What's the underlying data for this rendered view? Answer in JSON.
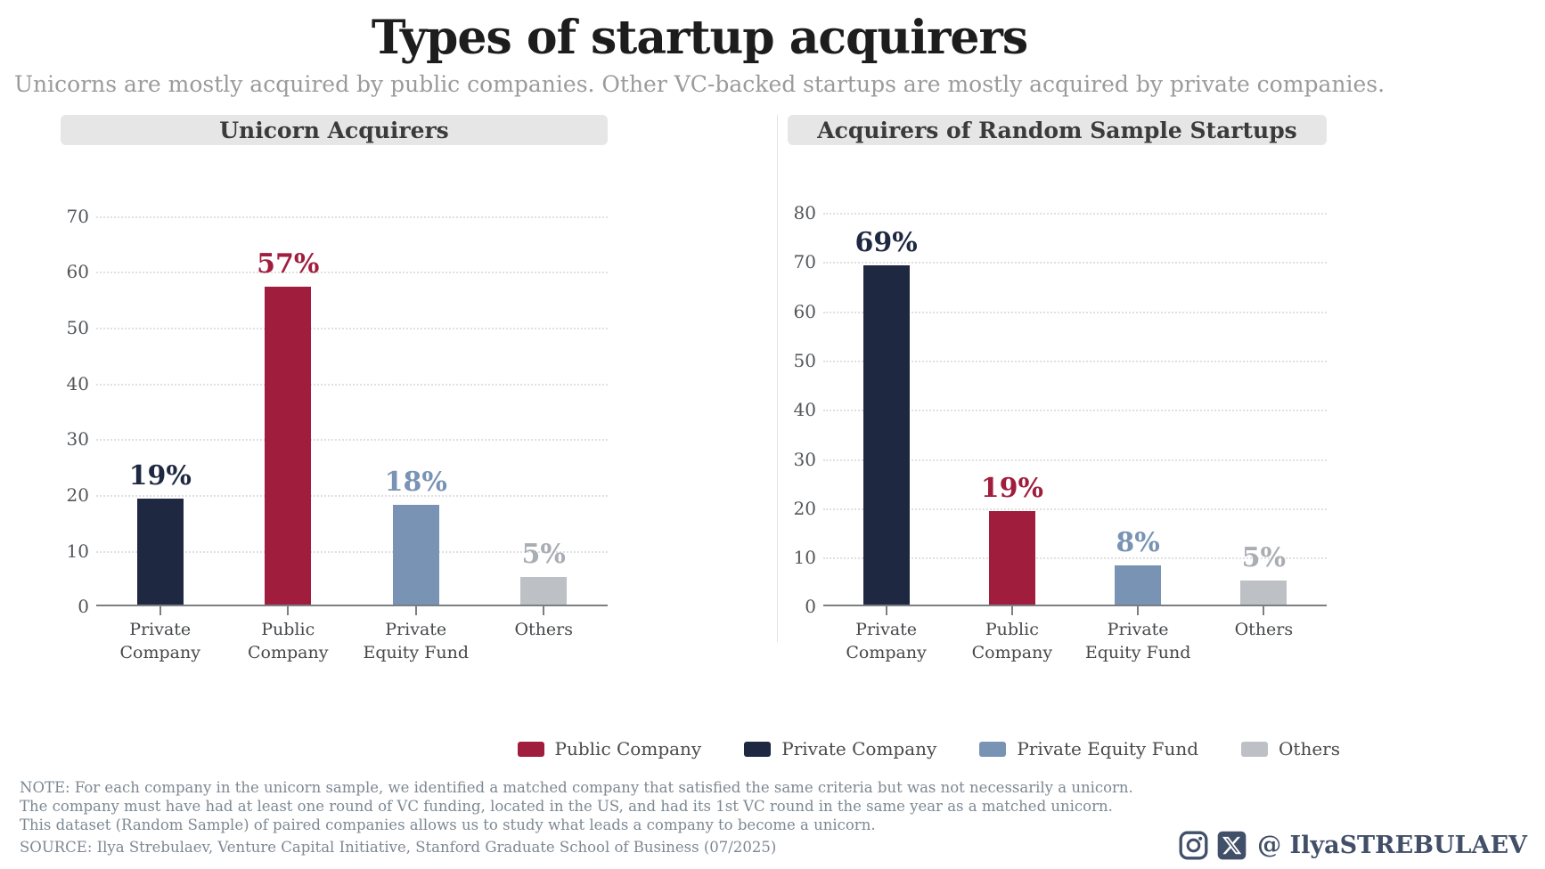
{
  "title": "Types of startup acquirers",
  "subtitle": "Unicorns are mostly acquired by public companies. Other VC-backed startups are mostly acquired by private companies.",
  "colors": {
    "public_company": "#a01d3d",
    "private_company": "#1e2941",
    "private_equity_fund": "#7893b4",
    "others": "#bdc1c5",
    "others_label": "#a9aeb4"
  },
  "chart_data": [
    {
      "type": "bar",
      "title": "Unicorn Acquirers",
      "categories": [
        "Private\nCompany",
        "Public\nCompany",
        "Private\nEquity Fund",
        "Others"
      ],
      "values": [
        19,
        57,
        18,
        5
      ],
      "value_labels": [
        "19%",
        "57%",
        "18%",
        "5%"
      ],
      "bar_colors": [
        "#1e2941",
        "#a01d3d",
        "#7893b4",
        "#bdc1c5"
      ],
      "label_colors": [
        "#1e2941",
        "#a01d3d",
        "#7893b4",
        "#a9aeb4"
      ],
      "ylabel": "",
      "xlabel": "",
      "yticks": [
        0,
        10,
        20,
        30,
        40,
        50,
        60,
        70
      ],
      "ymax": 75,
      "grid": "horizontal dotted",
      "legend_position": "none"
    },
    {
      "type": "bar",
      "title": "Acquirers of Random Sample Startups",
      "categories": [
        "Private\nCompany",
        "Public\nCompany",
        "Private\nEquity Fund",
        "Others"
      ],
      "values": [
        69,
        19,
        8,
        5
      ],
      "value_labels": [
        "69%",
        "19%",
        "8%",
        "5%"
      ],
      "bar_colors": [
        "#1e2941",
        "#a01d3d",
        "#7893b4",
        "#bdc1c5"
      ],
      "label_colors": [
        "#1e2941",
        "#a01d3d",
        "#7893b4",
        "#a9aeb4"
      ],
      "ylabel": "",
      "xlabel": "",
      "yticks": [
        0,
        10,
        20,
        30,
        40,
        50,
        60,
        70,
        80
      ],
      "ymax": 85,
      "grid": "horizontal dotted",
      "legend_position": "none"
    }
  ],
  "legend": {
    "items": [
      {
        "label": "Public Company",
        "color": "#a01d3d"
      },
      {
        "label": "Private Company",
        "color": "#1e2941"
      },
      {
        "label": "Private Equity Fund",
        "color": "#7893b4"
      },
      {
        "label": "Others",
        "color": "#bdc1c5"
      }
    ]
  },
  "note": "NOTE: For each company in the unicorn sample, we identified a matched company that satisfied the same criteria but was not necessarily a unicorn. The company must have had at least one round of VC funding, located in the US, and had its 1st VC round in the same year as a matched unicorn. This dataset (Random Sample) of paired companies allows us to study what leads a company to become a unicorn.",
  "source": "SOURCE: Ilya Strebulaev, Venture Capital Initiative, Stanford Graduate School of Business (07/2025)",
  "social": {
    "icons": [
      "instagram-icon",
      "x-icon"
    ],
    "handle": "@ IlyaSTREBULAEV"
  }
}
